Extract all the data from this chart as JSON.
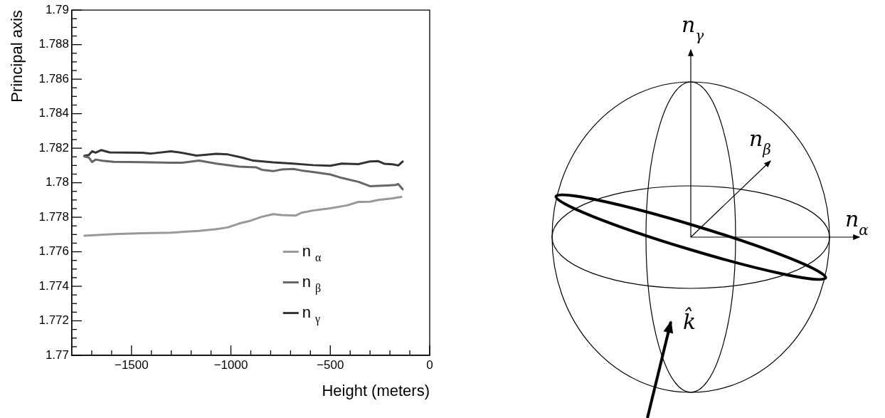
{
  "chart_data": {
    "type": "line",
    "xlabel": "Height (meters)",
    "ylabel": "Principal axis",
    "xlim": [
      -1800,
      0
    ],
    "ylim": [
      1.77,
      1.79
    ],
    "xticks": [
      {
        "value": -1700,
        "label": null
      },
      {
        "value": -1600,
        "label": null
      },
      {
        "value": -1500,
        "label": "−1500"
      },
      {
        "value": -1400,
        "label": null
      },
      {
        "value": -1300,
        "label": null
      },
      {
        "value": -1200,
        "label": null
      },
      {
        "value": -1100,
        "label": null
      },
      {
        "value": -1000,
        "label": "−1000"
      },
      {
        "value": -900,
        "label": null
      },
      {
        "value": -800,
        "label": null
      },
      {
        "value": -700,
        "label": null
      },
      {
        "value": -600,
        "label": null
      },
      {
        "value": -500,
        "label": "−500"
      },
      {
        "value": -400,
        "label": null
      },
      {
        "value": -300,
        "label": null
      },
      {
        "value": -200,
        "label": null
      },
      {
        "value": -100,
        "label": null
      },
      0
    ],
    "yticks": [
      1.77,
      {
        "value": 1.7705,
        "label": null
      },
      {
        "value": 1.771,
        "label": null
      },
      {
        "value": 1.7715,
        "label": null
      },
      1.772,
      {
        "value": 1.7725,
        "label": null
      },
      {
        "value": 1.773,
        "label": null
      },
      {
        "value": 1.7735,
        "label": null
      },
      1.774,
      {
        "value": 1.7745,
        "label": null
      },
      {
        "value": 1.775,
        "label": null
      },
      {
        "value": 1.7755,
        "label": null
      },
      1.776,
      {
        "value": 1.7765,
        "label": null
      },
      {
        "value": 1.777,
        "label": null
      },
      {
        "value": 1.7775,
        "label": null
      },
      1.778,
      {
        "value": 1.7785,
        "label": null
      },
      {
        "value": 1.779,
        "label": null
      },
      {
        "value": 1.7795,
        "label": null
      },
      1.78,
      {
        "value": 1.7805,
        "label": null
      },
      {
        "value": 1.781,
        "label": null
      },
      {
        "value": 1.7815,
        "label": null
      },
      1.782,
      {
        "value": 1.7825,
        "label": null
      },
      {
        "value": 1.783,
        "label": null
      },
      {
        "value": 1.7835,
        "label": null
      },
      1.784,
      {
        "value": 1.7845,
        "label": null
      },
      {
        "value": 1.785,
        "label": null
      },
      {
        "value": 1.7855,
        "label": null
      },
      1.786,
      {
        "value": 1.7865,
        "label": null
      },
      {
        "value": 1.787,
        "label": null
      },
      {
        "value": 1.7875,
        "label": null
      },
      1.788,
      {
        "value": 1.7885,
        "label": null
      },
      {
        "value": 1.789,
        "label": null
      },
      {
        "value": 1.7895,
        "label": null
      },
      1.79
    ],
    "legend": "bottom right",
    "marker": "none",
    "line_style": "solid",
    "series": [
      {
        "name": "n$_{α}$",
        "color": "#999999",
        "x": [
          -1737,
          -1589,
          -1445,
          -1302,
          -1160,
          -1073,
          -1016,
          -958,
          -901,
          -844,
          -787,
          -745,
          -673,
          -645,
          -587,
          -500,
          -415,
          -358,
          -301,
          -258,
          -186,
          -143
        ],
        "values": [
          1.77693,
          1.77702,
          1.77708,
          1.77711,
          1.77721,
          1.77731,
          1.77741,
          1.77764,
          1.7778,
          1.77803,
          1.77818,
          1.77813,
          1.7781,
          1.77826,
          1.77839,
          1.77852,
          1.77869,
          1.77889,
          1.7789,
          1.779,
          1.7791,
          1.77918
        ]
      },
      {
        "name": "n$_{β}$",
        "color": "#666666",
        "x": [
          -1737,
          -1715,
          -1698,
          -1680,
          -1645,
          -1589,
          -1445,
          -1302,
          -1245,
          -1160,
          -1073,
          -958,
          -872,
          -844,
          -787,
          -745,
          -687,
          -645,
          -587,
          -500,
          -443,
          -358,
          -301,
          -215,
          -172,
          -158,
          -136
        ],
        "values": [
          1.78152,
          1.78146,
          1.7812,
          1.78134,
          1.78127,
          1.78121,
          1.78119,
          1.78116,
          1.78116,
          1.78128,
          1.78111,
          1.78093,
          1.78089,
          1.78075,
          1.78067,
          1.78077,
          1.7808,
          1.78071,
          1.78062,
          1.78048,
          1.78028,
          1.78005,
          1.7798,
          1.77984,
          1.77987,
          1.77992,
          1.77962
        ]
      },
      {
        "name": "n$_{γ}$",
        "color": "#333333",
        "x": [
          -1737,
          -1715,
          -1698,
          -1680,
          -1653,
          -1610,
          -1445,
          -1402,
          -1302,
          -1259,
          -1173,
          -1073,
          -1016,
          -944,
          -887,
          -787,
          -687,
          -587,
          -500,
          -443,
          -358,
          -301,
          -258,
          -229,
          -186,
          -158,
          -136
        ],
        "values": [
          1.78156,
          1.7816,
          1.78182,
          1.78174,
          1.78189,
          1.78176,
          1.78174,
          1.78169,
          1.78182,
          1.78176,
          1.78157,
          1.78167,
          1.78164,
          1.78146,
          1.78128,
          1.78118,
          1.78111,
          1.78102,
          1.78098,
          1.78111,
          1.78108,
          1.78123,
          1.78125,
          1.7811,
          1.78107,
          1.781,
          1.78123
        ]
      }
    ],
    "annotations": [
      "n$_{γ}$",
      "n$_{β}$",
      "n$_{α}$",
      "k̂"
    ]
  }
}
